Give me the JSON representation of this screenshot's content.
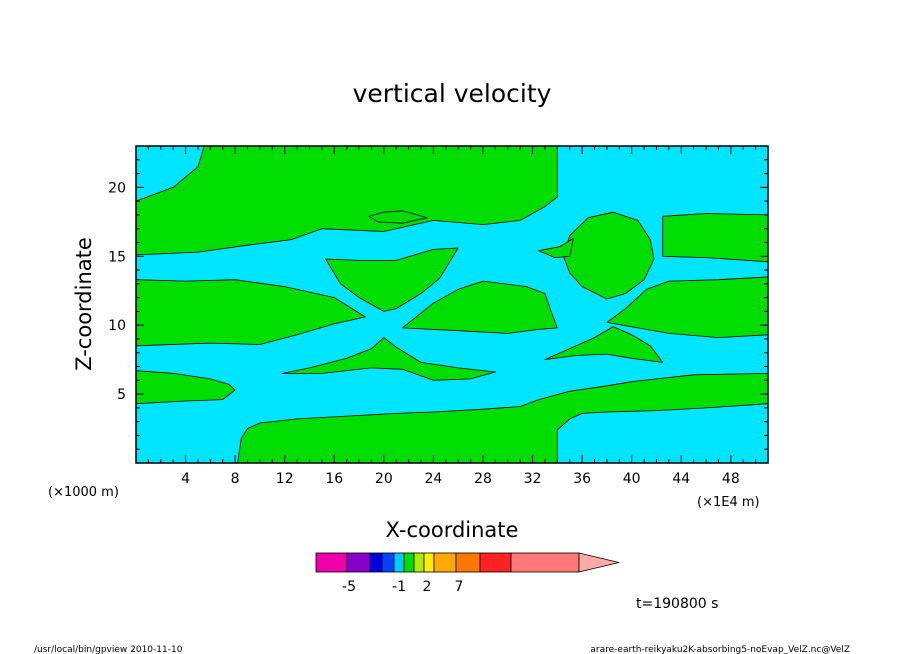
{
  "chart_data": {
    "type": "heatmap",
    "title": "vertical velocity",
    "xlabel": "X-coordinate",
    "ylabel": "Z-coordinate",
    "x_unit_left": "(×1000 m)",
    "x_unit_right": "(×1E4 m)",
    "xlim": [
      0,
      51
    ],
    "ylim": [
      0,
      23
    ],
    "x_ticks": [
      4,
      8,
      12,
      16,
      20,
      24,
      28,
      32,
      36,
      40,
      44,
      48
    ],
    "y_ticks": [
      5,
      10,
      15,
      20
    ],
    "background_fill": "#00e5ff",
    "region_fill": "#00dd00",
    "regions": [
      {
        "name": "band-top-left",
        "points": [
          [
            0,
            15.1
          ],
          [
            5,
            15.3
          ],
          [
            9,
            15.8
          ],
          [
            12.5,
            16.2
          ],
          [
            15,
            17.0
          ],
          [
            20,
            16.8
          ],
          [
            24,
            17.6
          ],
          [
            28,
            17.3
          ],
          [
            31,
            17.6
          ],
          [
            33,
            18.6
          ],
          [
            34,
            19.3
          ],
          [
            34,
            23
          ],
          [
            5.5,
            23
          ],
          [
            5,
            21.5
          ],
          [
            3,
            20.0
          ],
          [
            0,
            19.0
          ]
        ]
      },
      {
        "name": "band-top-right",
        "points": [
          [
            42.5,
            15.0
          ],
          [
            46,
            14.9
          ],
          [
            51,
            14.6
          ],
          [
            51,
            18.0
          ],
          [
            46,
            18.1
          ],
          [
            42.5,
            17.9
          ]
        ]
      },
      {
        "name": "left-band",
        "points": [
          [
            0,
            8.5
          ],
          [
            6,
            8.7
          ],
          [
            10,
            8.6
          ],
          [
            13,
            9.3
          ],
          [
            16,
            10.1
          ],
          [
            18.5,
            10.6
          ],
          [
            16,
            12.0
          ],
          [
            12,
            12.8
          ],
          [
            8,
            13.3
          ],
          [
            4,
            13.2
          ],
          [
            0,
            13.3
          ]
        ]
      },
      {
        "name": "mid-lens",
        "points": [
          [
            15.3,
            14.8
          ],
          [
            18,
            14.7
          ],
          [
            21,
            14.7
          ],
          [
            24,
            15.5
          ],
          [
            26,
            15.6
          ],
          [
            24.5,
            13.4
          ],
          [
            23,
            12.3
          ],
          [
            21,
            11.2
          ],
          [
            20,
            11.0
          ],
          [
            18,
            12.0
          ],
          [
            16.5,
            13.0
          ]
        ]
      },
      {
        "name": "mid-right-band",
        "points": [
          [
            21.5,
            9.8
          ],
          [
            26,
            9.6
          ],
          [
            30,
            9.4
          ],
          [
            32.5,
            9.7
          ],
          [
            34,
            9.8
          ],
          [
            33.5,
            11.0
          ],
          [
            33,
            12.3
          ],
          [
            31.5,
            12.8
          ],
          [
            28,
            13.2
          ],
          [
            26,
            12.6
          ],
          [
            24,
            11.6
          ]
        ]
      },
      {
        "name": "right-band",
        "points": [
          [
            38,
            10.2
          ],
          [
            43,
            9.4
          ],
          [
            47,
            9.1
          ],
          [
            51,
            9.3
          ],
          [
            51,
            13.5
          ],
          [
            47,
            13.3
          ],
          [
            43,
            13.2
          ],
          [
            41.2,
            12.6
          ],
          [
            39.5,
            11.2
          ]
        ]
      },
      {
        "name": "small-cap",
        "points": [
          [
            18.8,
            17.9
          ],
          [
            20,
            18.2
          ],
          [
            21.5,
            18.3
          ],
          [
            23.5,
            17.8
          ],
          [
            21.5,
            17.4
          ],
          [
            19.5,
            17.5
          ]
        ]
      },
      {
        "name": "big-blob",
        "points": [
          [
            34.5,
            15.0
          ],
          [
            35,
            16.5
          ],
          [
            36.5,
            17.8
          ],
          [
            38.5,
            18.2
          ],
          [
            40.5,
            17.6
          ],
          [
            41.5,
            16.2
          ],
          [
            41.8,
            14.8
          ],
          [
            41,
            13.3
          ],
          [
            39.5,
            12.3
          ],
          [
            38,
            11.9
          ],
          [
            36,
            12.8
          ],
          [
            35,
            13.8
          ]
        ]
      },
      {
        "name": "small-blob",
        "points": [
          [
            32.5,
            15.4
          ],
          [
            34.2,
            15.7
          ],
          [
            35.3,
            16.3
          ],
          [
            35,
            15.0
          ],
          [
            33.8,
            14.9
          ]
        ]
      },
      {
        "name": "wing-left",
        "points": [
          [
            11.8,
            6.5
          ],
          [
            14,
            6.9
          ],
          [
            17,
            7.6
          ],
          [
            19,
            8.3
          ],
          [
            20,
            9.1
          ],
          [
            21,
            8.4
          ],
          [
            23,
            7.3
          ],
          [
            26,
            6.9
          ],
          [
            29,
            6.6
          ],
          [
            27,
            6.1
          ],
          [
            24,
            6.0
          ],
          [
            21.5,
            6.8
          ],
          [
            19,
            6.9
          ],
          [
            15,
            6.5
          ]
        ]
      },
      {
        "name": "wing-right",
        "points": [
          [
            33,
            7.5
          ],
          [
            35,
            8.3
          ],
          [
            37,
            9.1
          ],
          [
            38.5,
            9.9
          ],
          [
            40,
            9.3
          ],
          [
            41.5,
            8.5
          ],
          [
            42.5,
            7.3
          ],
          [
            40,
            7.6
          ],
          [
            38,
            7.9
          ],
          [
            35.5,
            7.8
          ]
        ]
      },
      {
        "name": "low-left",
        "points": [
          [
            0,
            4.3
          ],
          [
            4,
            4.5
          ],
          [
            7,
            4.6
          ],
          [
            8,
            5.3
          ],
          [
            7.5,
            5.7
          ],
          [
            6,
            6.1
          ],
          [
            3,
            6.5
          ],
          [
            0,
            6.7
          ]
        ]
      },
      {
        "name": "bottom-band",
        "points": [
          [
            8.2,
            0
          ],
          [
            8.5,
            1.8
          ],
          [
            9,
            2.5
          ],
          [
            10,
            2.9
          ],
          [
            13,
            3.2
          ],
          [
            17,
            3.4
          ],
          [
            21,
            3.6
          ],
          [
            24,
            3.7
          ],
          [
            28,
            3.9
          ],
          [
            31,
            4.1
          ],
          [
            32.5,
            4.6
          ],
          [
            35,
            5.2
          ],
          [
            38,
            5.6
          ],
          [
            40,
            5.9
          ],
          [
            42,
            6.1
          ],
          [
            45,
            6.4
          ],
          [
            51,
            6.5
          ],
          [
            51,
            4.3
          ],
          [
            46,
            4.0
          ],
          [
            42,
            3.8
          ],
          [
            38,
            3.7
          ],
          [
            36,
            3.6
          ],
          [
            35,
            3.2
          ],
          [
            34,
            2.4
          ],
          [
            34,
            0
          ]
        ]
      }
    ],
    "colorbar": {
      "colors": [
        "#ee00aa",
        "#8800cc",
        "#0000dd",
        "#0044ff",
        "#00ccff",
        "#00dd00",
        "#aaee00",
        "#ffee00",
        "#ffaa00",
        "#ff7700",
        "#ff2222",
        "#ff7777",
        "#ffaaaa"
      ],
      "tick_labels": [
        "-5",
        "-1",
        "2",
        "7"
      ]
    },
    "time_label": "t=190800 s"
  },
  "footer": {
    "left": "/usr/local/bin/gpview   2010-11-10",
    "right": "arare-earth-reikyaku2K-absorbing5-noEvap_VelZ.nc@VelZ"
  }
}
